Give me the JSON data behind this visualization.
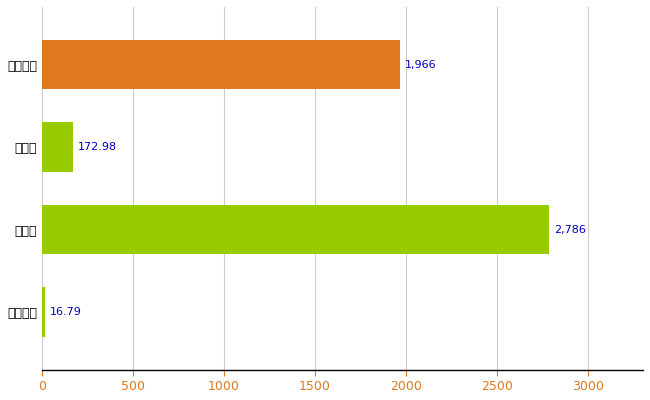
{
  "categories": [
    "千代田区",
    "県平均",
    "県最大",
    "全国平均"
  ],
  "values": [
    1966,
    172.98,
    2786,
    16.79
  ],
  "labels": [
    "1,966",
    "172.98",
    "2,786",
    "16.79"
  ],
  "bar_colors": [
    "#e07820",
    "#99cc00",
    "#99cc00",
    "#99cc00"
  ],
  "xlim": [
    0,
    3300
  ],
  "xticks": [
    0,
    500,
    1000,
    1500,
    2000,
    2500,
    3000
  ],
  "background_color": "#ffffff",
  "grid_color": "#cccccc",
  "label_color": "#0000cc",
  "xtick_color": "#e07820",
  "bar_height": 0.6,
  "label_fontsize": 8,
  "tick_fontsize": 9,
  "ytick_fontsize": 9
}
